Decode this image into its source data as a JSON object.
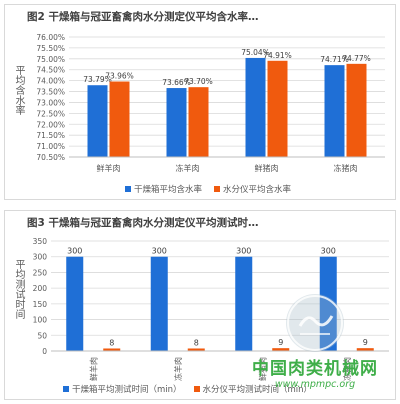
{
  "colors": {
    "blue": "#1f6fd6",
    "orange": "#f05a0e",
    "grid": "#d9d9d9",
    "text": "#595959"
  },
  "chart_data": [
    {
      "type": "bar",
      "title": "图2   干燥箱与冠亚畜禽肉水分测定仪平均含水率…",
      "ylabel": "平均含水率",
      "xlabel": "",
      "categories": [
        "鲜羊肉",
        "冻羊肉",
        "鲜猪肉",
        "冻猪肉"
      ],
      "series": [
        {
          "name": "干燥箱平均含水率",
          "values": [
            73.79,
            73.66,
            75.04,
            74.71
          ],
          "labels": [
            "73.79%",
            "73.66%",
            "75.04%",
            "74.71%"
          ]
        },
        {
          "name": "水分仪平均含水率",
          "values": [
            73.96,
            73.7,
            74.91,
            74.77
          ],
          "labels": [
            "73.96%",
            "73.70%",
            "74.91%",
            "74.77%"
          ]
        }
      ],
      "ylim": [
        70.5,
        76.0
      ],
      "yticks": [
        "70.50%",
        "71.00%",
        "71.50%",
        "72.00%",
        "72.50%",
        "73.00%",
        "73.50%",
        "74.00%",
        "74.50%",
        "75.00%",
        "75.50%",
        "76.00%"
      ],
      "grid": true,
      "legend": "bottom"
    },
    {
      "type": "bar",
      "title": "图3  干燥箱与冠亚畜禽肉水分测定仪平均测试时…",
      "ylabel": "平均测试时间",
      "xlabel": "",
      "categories": [
        "鲜羊肉",
        "冻羊肉",
        "鲜猪肉",
        "冻猪肉"
      ],
      "series": [
        {
          "name": "干燥箱平均测试时间（min）",
          "values": [
            300,
            300,
            300,
            300
          ],
          "labels": [
            "300",
            "300",
            "300",
            "300"
          ]
        },
        {
          "name": "水分仪平均测试时间（min）",
          "values": [
            8,
            8,
            9,
            9
          ],
          "labels": [
            "8",
            "8",
            "9",
            "9"
          ]
        }
      ],
      "ylim": [
        0,
        350
      ],
      "yticks": [
        "0",
        "50",
        "100",
        "150",
        "200",
        "250",
        "300",
        "350"
      ],
      "grid": true,
      "legend": "bottom"
    }
  ],
  "watermark": {
    "name": "中国肉类机械网",
    "url": "www.mpmpc.org",
    "logo_text": "MPMPC"
  }
}
